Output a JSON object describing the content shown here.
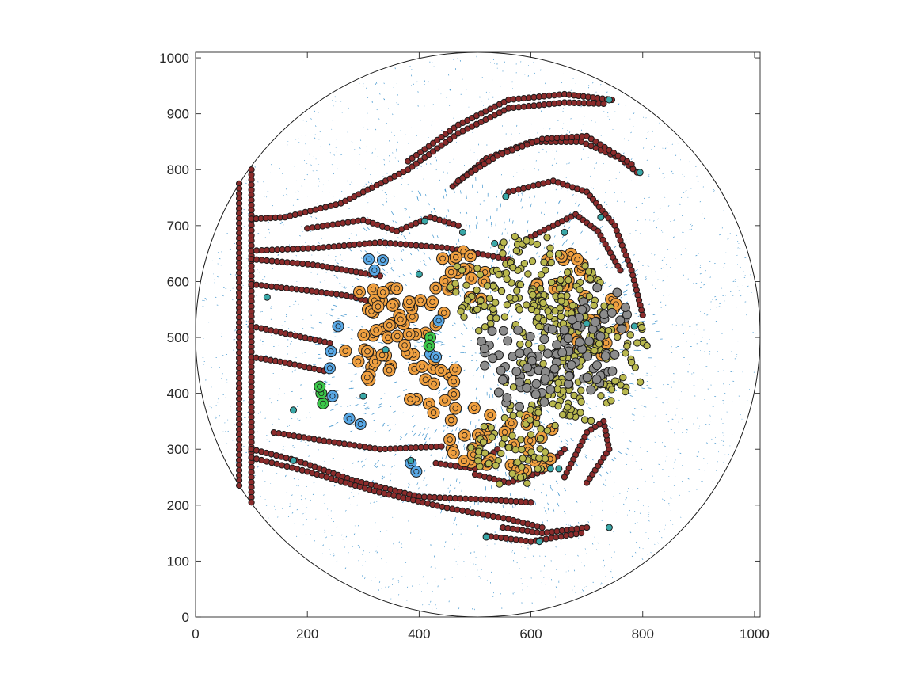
{
  "chart_data": {
    "type": "scatter",
    "title": "",
    "xlabel": "",
    "ylabel": "",
    "xlim": [
      0,
      1010
    ],
    "ylim": [
      0,
      1010
    ],
    "xticks": [
      0,
      200,
      400,
      600,
      800,
      1000
    ],
    "yticks": [
      0,
      100,
      200,
      300,
      400,
      500,
      600,
      700,
      800,
      900,
      1000
    ],
    "grid": false,
    "legend": "none",
    "domain_circle": {
      "center": [
        505,
        505
      ],
      "radius": 505
    },
    "colors": {
      "axes": "#262626",
      "boundary": "#1a1a1a",
      "flow": "#0072bd",
      "maroon": "#8b2b2b",
      "orange": "#f0a040",
      "olive": "#b9b84e",
      "gray": "#8c8c8c",
      "blue": "#5aa9e6",
      "teal": "#3aa8a8",
      "green": "#3cc84a"
    },
    "series": [
      {
        "marker": "maroon-small",
        "paths": [
          [
            [
              78,
              775
            ],
            [
              78,
              500
            ],
            [
              78,
              235
            ]
          ],
          [
            [
              100,
              800
            ],
            [
              100,
              510
            ],
            [
              100,
              205
            ]
          ],
          [
            [
              100,
              712
            ],
            [
              160,
              715
            ],
            [
              260,
              740
            ],
            [
              380,
              800
            ],
            [
              470,
              865
            ],
            [
              560,
              910
            ],
            [
              660,
              920
            ],
            [
              730,
              918
            ]
          ],
          [
            [
              380,
              815
            ],
            [
              470,
              880
            ],
            [
              560,
              925
            ],
            [
              660,
              935
            ],
            [
              745,
              925
            ]
          ],
          [
            [
              460,
              770
            ],
            [
              520,
              820
            ],
            [
              600,
              850
            ],
            [
              690,
              850
            ],
            [
              760,
              820
            ],
            [
              790,
              795
            ]
          ],
          [
            [
              470,
              780
            ],
            [
              540,
              825
            ],
            [
              620,
              855
            ],
            [
              700,
              860
            ],
            [
              780,
              810
            ]
          ],
          [
            [
              100,
              655
            ],
            [
              220,
              660
            ],
            [
              330,
              670
            ],
            [
              450,
              660
            ],
            [
              560,
              640
            ]
          ],
          [
            [
              100,
              640
            ],
            [
              210,
              630
            ],
            [
              330,
              610
            ]
          ],
          [
            [
              100,
              595
            ],
            [
              190,
              585
            ],
            [
              270,
              575
            ],
            [
              330,
              560
            ]
          ],
          [
            [
              100,
              520
            ],
            [
              170,
              505
            ],
            [
              240,
              490
            ]
          ],
          [
            [
              100,
              465
            ],
            [
              160,
              455
            ],
            [
              230,
              440
            ]
          ],
          [
            [
              100,
              300
            ],
            [
              180,
              280
            ],
            [
              280,
              245
            ],
            [
              400,
              215
            ],
            [
              520,
              210
            ],
            [
              600,
              205
            ]
          ],
          [
            [
              100,
              285
            ],
            [
              200,
              260
            ],
            [
              320,
              225
            ],
            [
              450,
              195
            ],
            [
              560,
              175
            ],
            [
              620,
              160
            ]
          ],
          [
            [
              140,
              330
            ],
            [
              230,
              315
            ],
            [
              330,
              300
            ],
            [
              440,
              305
            ]
          ],
          [
            [
              550,
              160
            ],
            [
              620,
              150
            ],
            [
              700,
              160
            ]
          ],
          [
            [
              520,
              145
            ],
            [
              600,
              135
            ],
            [
              690,
              150
            ]
          ],
          [
            [
              200,
              695
            ],
            [
              300,
              710
            ],
            [
              360,
              690
            ],
            [
              420,
              715
            ],
            [
              470,
              700
            ]
          ],
          [
            [
              560,
              760
            ],
            [
              640,
              780
            ],
            [
              700,
              760
            ],
            [
              750,
              700
            ],
            [
              780,
              620
            ],
            [
              800,
              540
            ]
          ],
          [
            [
              600,
              680
            ],
            [
              680,
              720
            ],
            [
              720,
              690
            ],
            [
              760,
              620
            ]
          ],
          [
            [
              700,
              240
            ],
            [
              740,
              300
            ],
            [
              730,
              350
            ],
            [
              700,
              330
            ],
            [
              660,
              250
            ]
          ],
          [
            [
              500,
              255
            ],
            [
              560,
              240
            ],
            [
              620,
              260
            ],
            [
              660,
              300
            ]
          ],
          [
            [
              430,
              275
            ],
            [
              500,
              265
            ],
            [
              540,
              300
            ]
          ]
        ]
      },
      {
        "marker": "orange",
        "count": 160
      },
      {
        "marker": "olive",
        "count": 420
      },
      {
        "marker": "gray",
        "count": 110
      },
      {
        "marker": "blue",
        "points": [
          [
            310,
            640
          ],
          [
            320,
            620
          ],
          [
            335,
            638
          ],
          [
            255,
            520
          ],
          [
            242,
            475
          ],
          [
            240,
            445
          ],
          [
            245,
            395
          ],
          [
            275,
            355
          ],
          [
            295,
            345
          ],
          [
            385,
            275
          ],
          [
            395,
            260
          ],
          [
            435,
            530
          ],
          [
            420,
            470
          ],
          [
            430,
            465
          ]
        ]
      },
      {
        "marker": "green",
        "points": [
          [
            228,
            382
          ],
          [
            225,
            400
          ],
          [
            222,
            412
          ],
          [
            420,
            500
          ],
          [
            418,
            485
          ]
        ]
      },
      {
        "marker": "teal",
        "points": [
          [
            300,
            395
          ],
          [
            340,
            478
          ],
          [
            175,
            370
          ],
          [
            128,
            572
          ],
          [
            400,
            613
          ],
          [
            410,
            708
          ],
          [
            478,
            688
          ],
          [
            535,
            668
          ],
          [
            555,
            752
          ],
          [
            660,
            688
          ],
          [
            725,
            715
          ],
          [
            740,
            925
          ],
          [
            795,
            795
          ],
          [
            785,
            520
          ],
          [
            740,
            160
          ],
          [
            700,
            525
          ],
          [
            650,
            265
          ],
          [
            635,
            265
          ],
          [
            615,
            135
          ],
          [
            520,
            143
          ],
          [
            385,
            280
          ],
          [
            175,
            280
          ]
        ]
      }
    ]
  }
}
